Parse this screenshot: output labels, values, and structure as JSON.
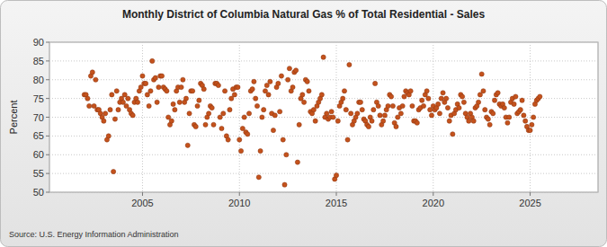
{
  "chart_data": {
    "type": "scatter",
    "title": "Monthly District of Columbia Natural Gas % of Total Residential - Sales",
    "y_label": "Percent",
    "source": "Source: U.S. Energy Information Administration",
    "color": "#c4521c",
    "marker": "circle",
    "grid": true,
    "xlim": [
      2000.2,
      2028.5
    ],
    "xticks": [
      2005,
      2010,
      2015,
      2020,
      2025
    ],
    "ylim": [
      50,
      90
    ],
    "yticks": [
      50,
      55,
      60,
      65,
      70,
      75,
      80,
      85,
      90
    ],
    "x": [
      2002,
      2002.083,
      2002.167,
      2002.25,
      2002.333,
      2002.417,
      2002.5,
      2002.583,
      2002.667,
      2002.75,
      2002.833,
      2002.917,
      2003,
      2003.083,
      2003.167,
      2003.25,
      2003.333,
      2003.417,
      2003.5,
      2003.583,
      2003.667,
      2003.75,
      2003.833,
      2003.917,
      2004,
      2004.083,
      2004.167,
      2004.25,
      2004.333,
      2004.417,
      2004.5,
      2004.583,
      2004.667,
      2004.75,
      2004.833,
      2004.917,
      2005,
      2005.083,
      2005.167,
      2005.25,
      2005.333,
      2005.417,
      2005.5,
      2005.583,
      2005.667,
      2005.75,
      2005.833,
      2005.917,
      2006,
      2006.083,
      2006.167,
      2006.25,
      2006.333,
      2006.417,
      2006.5,
      2006.583,
      2006.667,
      2006.75,
      2006.833,
      2006.917,
      2007,
      2007.083,
      2007.167,
      2007.25,
      2007.333,
      2007.417,
      2007.5,
      2007.583,
      2007.667,
      2007.75,
      2007.833,
      2007.917,
      2008,
      2008.083,
      2008.167,
      2008.25,
      2008.333,
      2008.417,
      2008.5,
      2008.583,
      2008.667,
      2008.75,
      2008.833,
      2008.917,
      2009,
      2009.083,
      2009.167,
      2009.25,
      2009.333,
      2009.417,
      2009.5,
      2009.583,
      2009.667,
      2009.75,
      2009.833,
      2009.917,
      2010,
      2010.083,
      2010.167,
      2010.25,
      2010.333,
      2010.417,
      2010.5,
      2010.583,
      2010.667,
      2010.75,
      2010.833,
      2010.917,
      2011,
      2011.083,
      2011.167,
      2011.25,
      2011.333,
      2011.417,
      2011.5,
      2011.583,
      2011.667,
      2011.75,
      2011.833,
      2011.917,
      2012,
      2012.083,
      2012.167,
      2012.25,
      2012.333,
      2012.417,
      2012.5,
      2012.583,
      2012.667,
      2012.75,
      2012.833,
      2012.917,
      2013,
      2013.083,
      2013.167,
      2013.25,
      2013.333,
      2013.417,
      2013.5,
      2013.583,
      2013.667,
      2013.75,
      2013.833,
      2013.917,
      2014,
      2014.083,
      2014.167,
      2014.25,
      2014.333,
      2014.417,
      2014.5,
      2014.583,
      2014.667,
      2014.75,
      2014.833,
      2014.917,
      2015,
      2015.083,
      2015.167,
      2015.25,
      2015.333,
      2015.417,
      2015.5,
      2015.583,
      2015.667,
      2015.75,
      2015.833,
      2015.917,
      2016,
      2016.083,
      2016.167,
      2016.25,
      2016.333,
      2016.417,
      2016.5,
      2016.583,
      2016.667,
      2016.75,
      2016.833,
      2016.917,
      2017,
      2017.083,
      2017.167,
      2017.25,
      2017.333,
      2017.417,
      2017.5,
      2017.583,
      2017.667,
      2017.75,
      2017.833,
      2017.917,
      2018,
      2018.083,
      2018.167,
      2018.25,
      2018.333,
      2018.417,
      2018.5,
      2018.583,
      2018.667,
      2018.75,
      2018.833,
      2018.917,
      2019,
      2019.083,
      2019.167,
      2019.25,
      2019.333,
      2019.417,
      2019.5,
      2019.583,
      2019.667,
      2019.75,
      2019.833,
      2019.917,
      2020,
      2020.083,
      2020.167,
      2020.25,
      2020.333,
      2020.417,
      2020.5,
      2020.583,
      2020.667,
      2020.75,
      2020.833,
      2020.917,
      2021,
      2021.083,
      2021.167,
      2021.25,
      2021.333,
      2021.417,
      2021.5,
      2021.583,
      2021.667,
      2021.75,
      2021.833,
      2021.917,
      2022,
      2022.083,
      2022.167,
      2022.25,
      2022.333,
      2022.417,
      2022.5,
      2022.583,
      2022.667,
      2022.75,
      2022.833,
      2022.917,
      2023,
      2023.083,
      2023.167,
      2023.25,
      2023.333,
      2023.417,
      2023.5,
      2023.583,
      2023.667,
      2023.75,
      2023.833,
      2023.917,
      2024,
      2024.083,
      2024.167,
      2024.25,
      2024.333,
      2024.417,
      2024.5,
      2024.583,
      2024.667,
      2024.75,
      2024.833,
      2024.917,
      2025,
      2025.083,
      2025.167,
      2025.25,
      2025.333,
      2025.417,
      2025.5
    ],
    "values": [
      76,
      76,
      75,
      73,
      81,
      82,
      73,
      80,
      72,
      72,
      71,
      70,
      69,
      71,
      64,
      65,
      72,
      76,
      55.5,
      69.5,
      77,
      72,
      74,
      75,
      74,
      76,
      73,
      75,
      72,
      71,
      70.5,
      74,
      75,
      74,
      77,
      78,
      81,
      79,
      79,
      76,
      73,
      77,
      85,
      80,
      80.5,
      74,
      78,
      81,
      81,
      78,
      77.5,
      77,
      70,
      68,
      69,
      73.5,
      72,
      77,
      78,
      74,
      78,
      80,
      74,
      75,
      62.5,
      71,
      77,
      77,
      68,
      67.5,
      73,
      74.5,
      79,
      78.5,
      77.5,
      68,
      70,
      71,
      73,
      72.5,
      68,
      79,
      79,
      78.5,
      70,
      67,
      71,
      77,
      65,
      64,
      72,
      75,
      77.5,
      76,
      78,
      78,
      64,
      61,
      67,
      70,
      66,
      65.5,
      71,
      77,
      77.5,
      79.5,
      75,
      73,
      54,
      61,
      70,
      72,
      77,
      78.5,
      76,
      79.5,
      71,
      66.5,
      70.5,
      78,
      79,
      71.5,
      81,
      64,
      52,
      60,
      80,
      83,
      77,
      78,
      82,
      82.5,
      58,
      68,
      75,
      76,
      74,
      80,
      79.5,
      77,
      71.5,
      71,
      72,
      69,
      73,
      74,
      75,
      76,
      86,
      70,
      71,
      69.5,
      70,
      71.5,
      70,
      53.5,
      54.5,
      69,
      73,
      74,
      75,
      77,
      72,
      64,
      84,
      71,
      68,
      69,
      70,
      71,
      74,
      74,
      72,
      69.5,
      69,
      68,
      67.5,
      70,
      69,
      72,
      79,
      74,
      73,
      70.5,
      68,
      69,
      70.5,
      72,
      73,
      76,
      75.5,
      73,
      68.5,
      67.5,
      70,
      72.5,
      71,
      73,
      75.5,
      77,
      76.5,
      76,
      77,
      73,
      69,
      69,
      68.5,
      72,
      72.5,
      74.5,
      73,
      76,
      77,
      75,
      72,
      70.5,
      73,
      72,
      72.5,
      73.5,
      71,
      75,
      76.5,
      74,
      75,
      72.5,
      69,
      70.5,
      65.5,
      71,
      72,
      73.5,
      72.5,
      76,
      75.5,
      74,
      71,
      70,
      69,
      71,
      70,
      69,
      72.5,
      73,
      74,
      76,
      81.5,
      77,
      72,
      70,
      69.5,
      68,
      71.5,
      71,
      74.5,
      76,
      76.5,
      73.5,
      73,
      73.5,
      72.5,
      70,
      68.5,
      70,
      74,
      75,
      73.5,
      75.5,
      71,
      71.5,
      72,
      74.5,
      70.5,
      69,
      67.5,
      66.5,
      66.5,
      68,
      70,
      73.5,
      74.5,
      75,
      75.5
    ]
  }
}
